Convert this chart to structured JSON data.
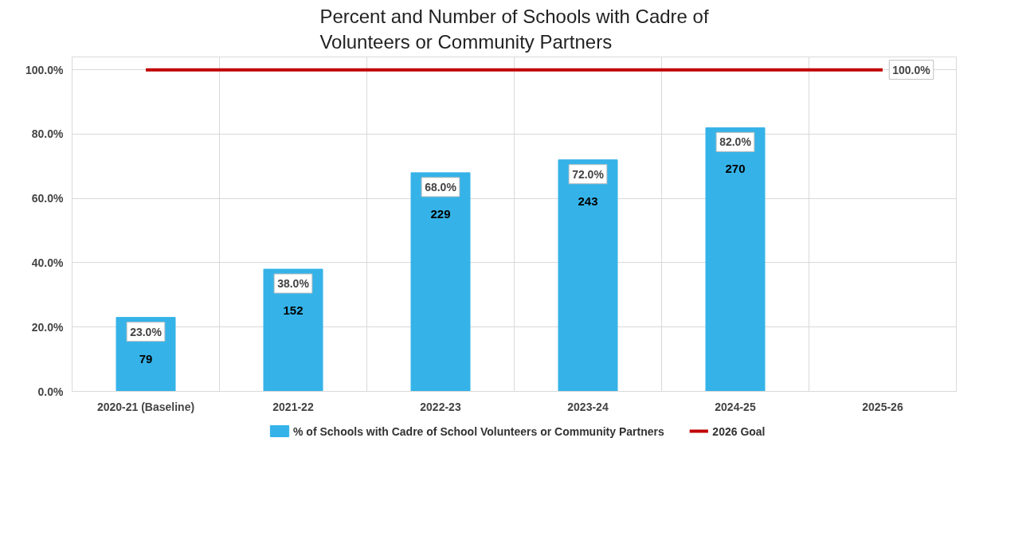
{
  "chart_data": {
    "type": "bar",
    "title": "Percent and Number of Schools with Cadre of\nVolunteers or Community Partners",
    "categories": [
      "2020-21 (Baseline)",
      "2021-22",
      "2022-23",
      "2023-24",
      "2024-25",
      "2025-26"
    ],
    "series": [
      {
        "name": "% of Schools with Cadre of School Volunteers or Community Partners",
        "color": "#35b3e8",
        "values": [
          23,
          38,
          68,
          72,
          82,
          null
        ],
        "value_labels": [
          "23.0%",
          "38.0%",
          "68.0%",
          "72.0%",
          "82.0%",
          null
        ]
      },
      {
        "name": "2026 Goal",
        "type": "line",
        "color": "#c00000",
        "values": [
          100,
          100,
          100,
          100,
          100,
          100
        ],
        "value_labels": [
          null,
          null,
          null,
          null,
          null,
          "100.0%"
        ]
      }
    ],
    "annotations": [
      "79",
      "152",
      "229",
      "243",
      "270"
    ],
    "ylim": [
      0,
      104
    ],
    "yticks": [
      {
        "value": 0,
        "label": "0.0%"
      },
      {
        "value": 20,
        "label": "20.0%"
      },
      {
        "value": 40,
        "label": "40.0%"
      },
      {
        "value": 60,
        "label": "60.0%"
      },
      {
        "value": 80,
        "label": "80.0%"
      },
      {
        "value": 100,
        "label": "100.0%"
      }
    ],
    "grid": true,
    "legend": "bottom"
  }
}
